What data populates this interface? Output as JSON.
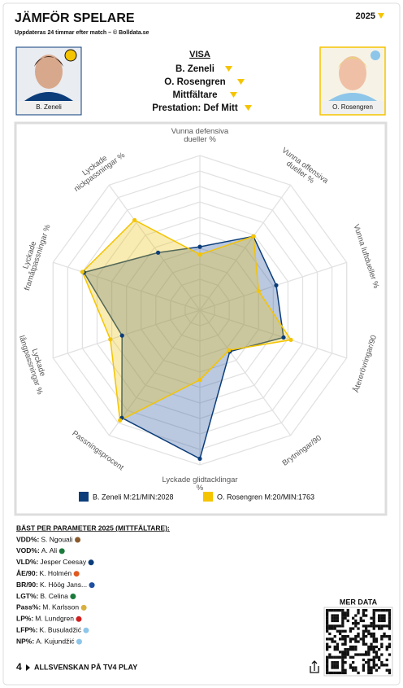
{
  "header": {
    "title": "JÄMFÖR SPELARE",
    "subtitle": "Uppdateras 24 timmar efter match – © Bolldata.se",
    "season": "2025"
  },
  "players": [
    {
      "name": "B. Zeneli"
    },
    {
      "name": "O. Rosengren"
    }
  ],
  "selection": {
    "heading": "VISA",
    "player1": "B. Zeneli",
    "player2": "O. Rosengren",
    "position": "Mittfältare",
    "performance": "Prestation: Def Mitt"
  },
  "chart_data": {
    "type": "radar",
    "categories": [
      "Vunna defensiva dueller %",
      "Vunna offensiva dueller %",
      "Vunna luftdueller %",
      "Återerövringar/90",
      "Brytningar/90",
      "Lyckade glidtacklingar %",
      "Passningsprocent",
      "Lyckade långpassningar %",
      "Lyckade framåtpassningar %",
      "Lyckade nickpassningar %"
    ],
    "series": [
      {
        "name": "B. Zeneli M:21/MIN:2028",
        "color": "#0b3d7a",
        "values": [
          41,
          59,
          52,
          57,
          33,
          96,
          86,
          53,
          79,
          46
        ]
      },
      {
        "name": "O. Rosengren M:20/MIN:1763",
        "color": "#f5c400",
        "values": [
          36,
          59,
          40,
          62,
          32,
          45,
          88,
          61,
          80,
          72
        ]
      }
    ],
    "ylim": [
      0,
      100
    ],
    "yticks": [
      0,
      10,
      20,
      30,
      40,
      50,
      60,
      70,
      80,
      90,
      100
    ],
    "grid": true
  },
  "best": {
    "title": "BÄST PER PARAMETER 2025 (MITTFÄLTARE):",
    "rows": [
      [
        "VDD%:",
        "S. Ngouali"
      ],
      [
        "VOD%:",
        "A. Ali"
      ],
      [
        "VLD%:",
        "Jesper Ceesay"
      ],
      [
        "ÅE/90:",
        "K. Holmén"
      ],
      [
        "BR/90:",
        "K. Höög Jans..."
      ],
      [
        "LGT%:",
        "B. Celina"
      ],
      [
        "Pass%:",
        "M. Karlsson"
      ],
      [
        "LP%:",
        "M. Lundgren"
      ],
      [
        "LFP%:",
        "K. Busuladžić"
      ],
      [
        "NP%:",
        "A. Kujundžić"
      ]
    ]
  },
  "qr": {
    "label": "MER DATA"
  },
  "footer": {
    "logo": "4",
    "text": "ALLSVENSKAN PÅ TV4 PLAY"
  }
}
